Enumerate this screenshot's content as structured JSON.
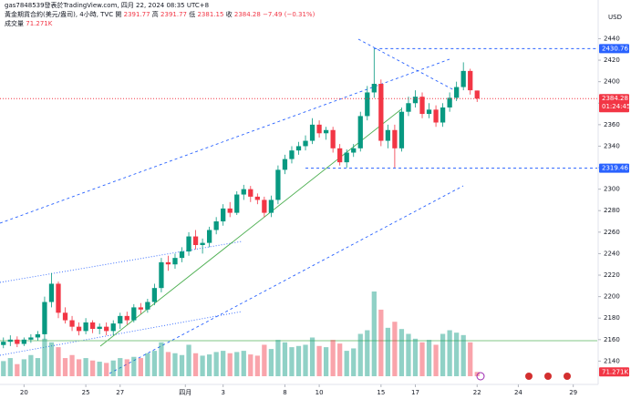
{
  "header": {
    "line1": "gas7848539發表於TradingView.com, 四月 22, 2024 08:35 UTC+8",
    "symbol": "黃金期貨合約(美元/盎司), 4小時, TVC",
    "ohlc_names": [
      "開",
      "高",
      "低",
      "收"
    ],
    "change": "−7.49 (−0.31%)",
    "volume_name": "成交量"
  },
  "chart_data": {
    "type": "candlestick",
    "currency": "USD",
    "x": [
      0,
      1,
      2,
      3,
      4,
      5,
      6,
      7,
      8,
      9,
      10,
      11,
      12,
      13,
      14,
      15,
      16,
      17,
      18,
      19,
      20,
      21,
      22,
      23,
      24,
      25,
      26,
      27,
      28,
      29,
      30,
      31,
      32,
      33,
      34,
      35,
      36,
      37,
      38,
      39,
      40,
      41,
      42,
      43,
      44,
      45,
      46,
      47,
      48,
      49,
      50,
      51,
      52,
      53,
      54,
      55,
      56,
      57,
      58,
      59,
      60,
      61,
      62,
      63,
      64,
      65,
      66,
      67,
      68,
      69
    ],
    "open": [
      2155,
      2158,
      2160,
      2156,
      2160,
      2162,
      2165,
      2195,
      2212,
      2185,
      2178,
      2172,
      2168,
      2176,
      2170,
      2172,
      2168,
      2175,
      2182,
      2178,
      2190,
      2188,
      2195,
      2208,
      2232,
      2230,
      2236,
      2242,
      2256,
      2248,
      2250,
      2262,
      2270,
      2282,
      2278,
      2295,
      2300,
      2293,
      2290,
      2278,
      2290,
      2318,
      2328,
      2336,
      2340,
      2345,
      2360,
      2352,
      2355,
      2338,
      2325,
      2334,
      2338,
      2368,
      2390,
      2398,
      2345,
      2355,
      2338,
      2372,
      2380,
      2386,
      2370,
      2374,
      2362,
      2376,
      2385,
      2395,
      2410,
      2391.77
    ],
    "high": [
      2162,
      2164,
      2163,
      2162,
      2165,
      2168,
      2200,
      2222,
      2214,
      2190,
      2182,
      2176,
      2180,
      2178,
      2175,
      2176,
      2178,
      2185,
      2186,
      2193,
      2194,
      2198,
      2212,
      2236,
      2238,
      2240,
      2246,
      2260,
      2262,
      2254,
      2265,
      2274,
      2286,
      2288,
      2298,
      2304,
      2303,
      2296,
      2293,
      2294,
      2322,
      2332,
      2340,
      2344,
      2350,
      2366,
      2364,
      2358,
      2358,
      2342,
      2337,
      2342,
      2372,
      2396,
      2430.76,
      2402,
      2360,
      2360,
      2376,
      2386,
      2392,
      2390,
      2380,
      2378,
      2380,
      2390,
      2400,
      2418,
      2412,
      2391.77
    ],
    "low": [
      2152,
      2154,
      2153,
      2154,
      2157,
      2159,
      2160,
      2190,
      2180,
      2175,
      2168,
      2164,
      2165,
      2166,
      2165,
      2164,
      2164,
      2170,
      2174,
      2176,
      2184,
      2185,
      2192,
      2204,
      2224,
      2226,
      2232,
      2238,
      2244,
      2240,
      2246,
      2258,
      2266,
      2274,
      2276,
      2290,
      2288,
      2286,
      2274,
      2274,
      2286,
      2314,
      2324,
      2332,
      2336,
      2342,
      2348,
      2346,
      2334,
      2322,
      2320,
      2330,
      2335,
      2364,
      2385,
      2340,
      2338,
      2320,
      2335,
      2368,
      2376,
      2366,
      2366,
      2358,
      2358,
      2372,
      2382,
      2392,
      2388,
      2381.15
    ],
    "close": [
      2158,
      2160,
      2156,
      2160,
      2162,
      2165,
      2195,
      2212,
      2185,
      2178,
      2172,
      2168,
      2176,
      2170,
      2172,
      2168,
      2175,
      2182,
      2178,
      2190,
      2188,
      2195,
      2208,
      2232,
      2230,
      2236,
      2242,
      2256,
      2248,
      2250,
      2262,
      2270,
      2282,
      2278,
      2295,
      2300,
      2293,
      2290,
      2278,
      2290,
      2318,
      2328,
      2336,
      2340,
      2345,
      2360,
      2352,
      2355,
      2338,
      2325,
      2334,
      2338,
      2368,
      2390,
      2398,
      2345,
      2355,
      2338,
      2372,
      2380,
      2386,
      2370,
      2374,
      2362,
      2376,
      2385,
      2395,
      2410,
      2392,
      2384.28
    ],
    "up_color": "#089981",
    "down_color": "#f23645",
    "volume": {
      "values": [
        250000,
        300000,
        200000,
        280000,
        350000,
        300000,
        620000,
        560000,
        480000,
        300000,
        350000,
        280000,
        300000,
        260000,
        240000,
        220000,
        260000,
        300000,
        280000,
        320000,
        300000,
        380000,
        420000,
        560000,
        400000,
        380000,
        350000,
        520000,
        380000,
        340000,
        360000,
        400000,
        420000,
        380000,
        400000,
        420000,
        360000,
        340000,
        520000,
        450000,
        600000,
        560000,
        480000,
        500000,
        520000,
        640000,
        500000,
        480000,
        600000,
        540000,
        420000,
        460000,
        700000,
        760000,
        1400000,
        1100000,
        800000,
        900000,
        780000,
        700000,
        620000,
        560000,
        600000,
        520000,
        700000,
        760000,
        720000,
        680000,
        560000,
        71271
      ],
      "last_label": "71.271K",
      "lim": [
        0,
        1400000
      ]
    },
    "xlim": [
      -0.5,
      86.5
    ],
    "xticks": [
      {
        "value": 3,
        "label": "20"
      },
      {
        "value": 12,
        "label": "25"
      },
      {
        "value": 17,
        "label": "27"
      },
      {
        "value": 26.5,
        "label": "四月"
      },
      {
        "value": 32,
        "label": "3"
      },
      {
        "value": 41,
        "label": "8"
      },
      {
        "value": 46,
        "label": "10"
      },
      {
        "value": 55,
        "label": "15"
      },
      {
        "value": 60,
        "label": "17"
      },
      {
        "value": 69,
        "label": "22"
      },
      {
        "value": 75,
        "label": "24"
      },
      {
        "value": 83,
        "label": "29"
      }
    ],
    "ylim": [
      2120,
      2476
    ],
    "yticks": [
      2140,
      2160,
      2180,
      2200,
      2220,
      2240,
      2260,
      2280,
      2300,
      2320,
      2340,
      2360,
      2380,
      2400,
      2420,
      2440
    ],
    "levels": [
      {
        "value": 2430.76,
        "color": "#2962ff"
      },
      {
        "value": 2319.46,
        "color": "#2962ff"
      }
    ],
    "countdown": "01:24:45"
  }
}
